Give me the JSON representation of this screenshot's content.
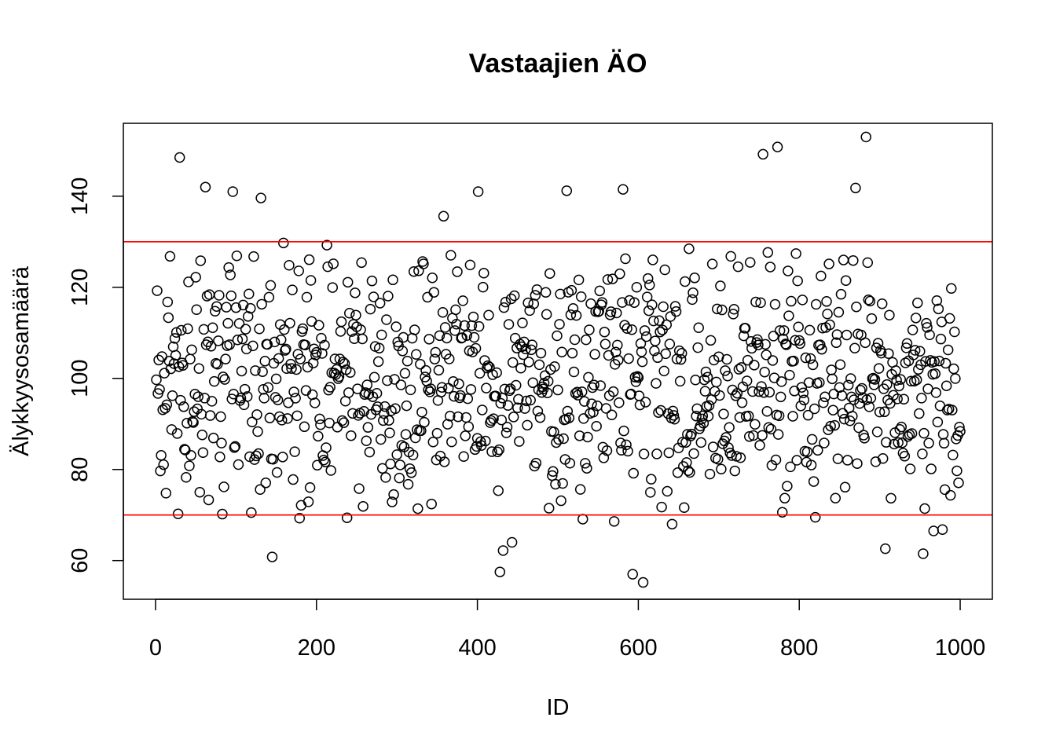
{
  "chart_data": {
    "type": "scatter",
    "title": "Vastaajien ÄO",
    "xlabel": "ID",
    "ylabel": "Älykkyysosamäärä",
    "xlim": [
      -40,
      1040
    ],
    "ylim": [
      51.5,
      156
    ],
    "x_ticks": [
      0,
      200,
      400,
      600,
      800,
      1000
    ],
    "y_ticks": [
      60,
      80,
      100,
      120,
      140
    ],
    "grid": false,
    "legend": "none",
    "marker": "open-circle",
    "marker_color": "#000000",
    "reference_lines": [
      {
        "axis": "y",
        "value": 130,
        "color": "#ff0000"
      },
      {
        "axis": "y",
        "value": 70,
        "color": "#ff0000"
      }
    ],
    "n_points": 1000,
    "notable_points": [
      {
        "x": 30,
        "y": 148.5
      },
      {
        "x": 62,
        "y": 142
      },
      {
        "x": 96,
        "y": 141
      },
      {
        "x": 131,
        "y": 139.6
      },
      {
        "x": 238,
        "y": 135.7
      },
      {
        "x": 358,
        "y": 135.6
      },
      {
        "x": 401,
        "y": 141
      },
      {
        "x": 511,
        "y": 141.2
      },
      {
        "x": 581,
        "y": 141.5
      },
      {
        "x": 755,
        "y": 149.2
      },
      {
        "x": 773,
        "y": 150.8
      },
      {
        "x": 870,
        "y": 141.8
      },
      {
        "x": 883,
        "y": 153
      },
      {
        "x": 145,
        "y": 60.8
      },
      {
        "x": 428,
        "y": 57.5
      },
      {
        "x": 432,
        "y": 62.2
      },
      {
        "x": 443,
        "y": 64
      },
      {
        "x": 593,
        "y": 57
      },
      {
        "x": 606,
        "y": 55.2
      },
      {
        "x": 642,
        "y": 68
      },
      {
        "x": 907,
        "y": 62.6
      },
      {
        "x": 954,
        "y": 61.5
      },
      {
        "x": 967,
        "y": 66.5
      },
      {
        "x": 978,
        "y": 66.8
      },
      {
        "x": 83,
        "y": 70.2
      },
      {
        "x": 179,
        "y": 69.3
      },
      {
        "x": 238,
        "y": 69.4
      },
      {
        "x": 531,
        "y": 69.1
      },
      {
        "x": 570,
        "y": 68.6
      },
      {
        "x": 820,
        "y": 69.5
      },
      {
        "x": 779,
        "y": 70.6
      }
    ],
    "generator": {
      "seed": 20240,
      "mean": 100,
      "sd": 15,
      "ymin": 52,
      "ymax": 154
    }
  }
}
